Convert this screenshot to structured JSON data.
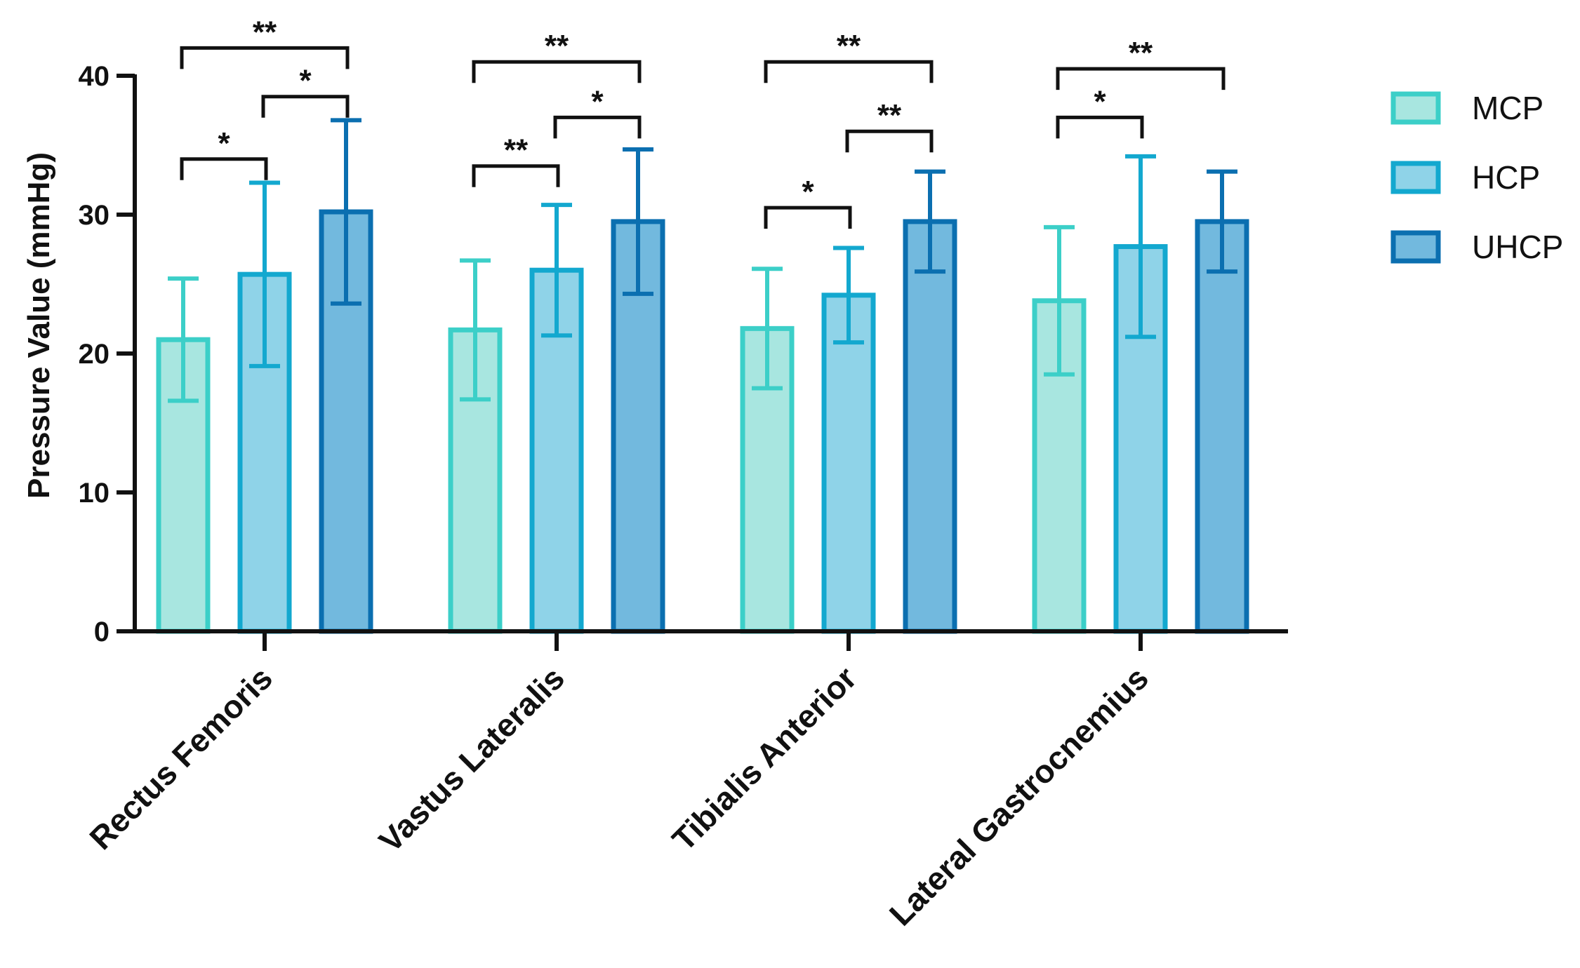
{
  "chart_data": {
    "type": "bar",
    "title": "",
    "xlabel": "",
    "ylabel": "Pressure Value (mmHg)",
    "ylim": [
      0,
      40
    ],
    "yticks": [
      0,
      10,
      20,
      30,
      40
    ],
    "categories": [
      "Rectus Femoris",
      "Vastus Lateralis",
      "Tibialis Anterior",
      "Lateral Gastrocnemius"
    ],
    "series": [
      {
        "name": "MCP",
        "values": [
          21.0,
          21.7,
          21.8,
          23.8
        ],
        "errors": [
          4.4,
          5.0,
          4.3,
          5.3
        ],
        "fill": "#a8e6e0",
        "stroke": "#3ccfc8"
      },
      {
        "name": "HCP",
        "values": [
          25.7,
          26.0,
          24.2,
          27.7
        ],
        "errors": [
          6.6,
          4.7,
          3.4,
          6.5
        ],
        "fill": "#8fd3e8",
        "stroke": "#13a8cf"
      },
      {
        "name": "UHCP",
        "values": [
          30.2,
          29.5,
          29.5,
          29.5
        ],
        "errors": [
          6.6,
          5.2,
          3.6,
          3.6
        ],
        "fill": "#72b9de",
        "stroke": "#0b6fb0"
      }
    ],
    "legend_position": "top-right",
    "significance": [
      {
        "category": 0,
        "from": 0,
        "to": 1,
        "label": "*",
        "level": 34.0
      },
      {
        "category": 0,
        "from": 1,
        "to": 2,
        "label": "*",
        "level": 38.5
      },
      {
        "category": 0,
        "from": 0,
        "to": 2,
        "label": "**",
        "level": 42.0
      },
      {
        "category": 1,
        "from": 0,
        "to": 1,
        "label": "**",
        "level": 33.5
      },
      {
        "category": 1,
        "from": 1,
        "to": 2,
        "label": "*",
        "level": 37.0
      },
      {
        "category": 1,
        "from": 0,
        "to": 2,
        "label": "**",
        "level": 41.0
      },
      {
        "category": 2,
        "from": 0,
        "to": 1,
        "label": "*",
        "level": 30.5
      },
      {
        "category": 2,
        "from": 1,
        "to": 2,
        "label": "**",
        "level": 36.0
      },
      {
        "category": 2,
        "from": 0,
        "to": 2,
        "label": "**",
        "level": 41.0
      },
      {
        "category": 3,
        "from": 0,
        "to": 1,
        "label": "*",
        "level": 37.0
      },
      {
        "category": 3,
        "from": 0,
        "to": 2,
        "label": "**",
        "level": 40.5
      }
    ]
  }
}
